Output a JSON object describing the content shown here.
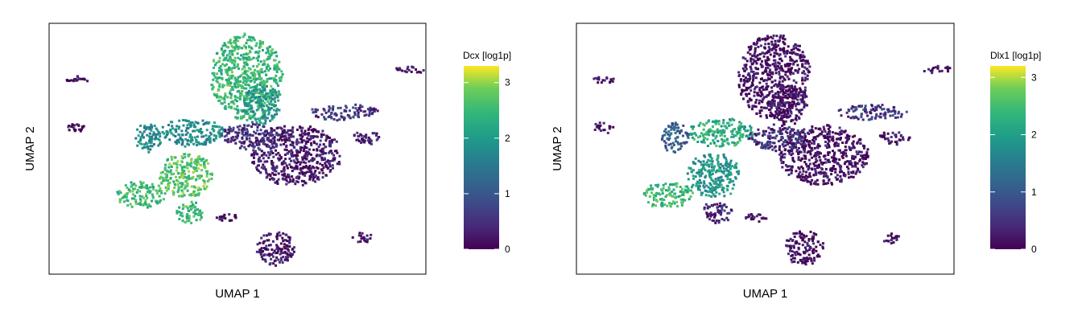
{
  "chart_data": [
    {
      "type": "scatter",
      "subtype": "umap-density-hexbin",
      "title": "",
      "xlabel": "UMAP 1",
      "ylabel": "UMAP 2",
      "grid": false,
      "legend_placement": "right",
      "colorbar": {
        "label": "Dcx [log1p]",
        "ticks": [
          0,
          1,
          2,
          3
        ],
        "vmin": 0,
        "vmax": 3.3,
        "colormap": "viridis"
      },
      "series": [
        {
          "region": "top-lobe",
          "x": 0.52,
          "y": 0.79,
          "value": 2.5
        },
        {
          "region": "top-lobe-base",
          "x": 0.56,
          "y": 0.68,
          "value": 1.9
        },
        {
          "region": "left-upper-branch",
          "x": 0.38,
          "y": 0.57,
          "value": 1.8
        },
        {
          "region": "left-main-cluster",
          "x": 0.36,
          "y": 0.4,
          "value": 2.7
        },
        {
          "region": "left-arm",
          "x": 0.26,
          "y": 0.55,
          "value": 1.8
        },
        {
          "region": "left-bottom",
          "x": 0.24,
          "y": 0.32,
          "value": 2.5
        },
        {
          "region": "lower-left-small",
          "x": 0.37,
          "y": 0.25,
          "value": 2.5
        },
        {
          "region": "center-right-mass",
          "x": 0.65,
          "y": 0.48,
          "value": 0.2
        },
        {
          "region": "center-left-mass",
          "x": 0.53,
          "y": 0.55,
          "value": 0.5
        },
        {
          "region": "right-branch-upper",
          "x": 0.78,
          "y": 0.65,
          "value": 0.6
        },
        {
          "region": "right-spur",
          "x": 0.84,
          "y": 0.55,
          "value": 0.4
        },
        {
          "region": "top-right-strand",
          "x": 0.96,
          "y": 0.82,
          "value": 0.1
        },
        {
          "region": "far-left-blob",
          "x": 0.07,
          "y": 0.59,
          "value": 0.1
        },
        {
          "region": "far-left-strand",
          "x": 0.07,
          "y": 0.78,
          "value": 0.1
        },
        {
          "region": "bottom-cluster",
          "x": 0.6,
          "y": 0.11,
          "value": 0.2
        },
        {
          "region": "bottom-right-blob",
          "x": 0.83,
          "y": 0.15,
          "value": 0.1
        },
        {
          "region": "bottom-mid-strand",
          "x": 0.47,
          "y": 0.23,
          "value": 0.1
        }
      ]
    },
    {
      "type": "scatter",
      "subtype": "umap-density-hexbin",
      "title": "",
      "xlabel": "UMAP 1",
      "ylabel": "UMAP 2",
      "grid": false,
      "legend_placement": "right",
      "colorbar": {
        "label": "Dlx1 [log1p]",
        "ticks": [
          0,
          1,
          2,
          3
        ],
        "vmin": 0,
        "vmax": 3.2,
        "colormap": "viridis"
      },
      "series": [
        {
          "region": "top-lobe",
          "x": 0.52,
          "y": 0.79,
          "value": 0.1
        },
        {
          "region": "top-lobe-base",
          "x": 0.56,
          "y": 0.68,
          "value": 0.2
        },
        {
          "region": "left-upper-branch",
          "x": 0.38,
          "y": 0.57,
          "value": 2.2
        },
        {
          "region": "left-main-cluster",
          "x": 0.36,
          "y": 0.4,
          "value": 1.9
        },
        {
          "region": "left-arm",
          "x": 0.26,
          "y": 0.55,
          "value": 1.0
        },
        {
          "region": "left-bottom",
          "x": 0.24,
          "y": 0.32,
          "value": 2.4
        },
        {
          "region": "lower-left-small",
          "x": 0.37,
          "y": 0.25,
          "value": 0.3
        },
        {
          "region": "center-right-mass",
          "x": 0.65,
          "y": 0.48,
          "value": 0.1
        },
        {
          "region": "center-left-mass",
          "x": 0.53,
          "y": 0.55,
          "value": 0.5
        },
        {
          "region": "right-branch-upper",
          "x": 0.78,
          "y": 0.65,
          "value": 0.6
        },
        {
          "region": "right-spur",
          "x": 0.84,
          "y": 0.55,
          "value": 0.2
        },
        {
          "region": "top-right-strand",
          "x": 0.96,
          "y": 0.82,
          "value": 0.1
        },
        {
          "region": "far-left-blob",
          "x": 0.07,
          "y": 0.59,
          "value": 0.1
        },
        {
          "region": "far-left-strand",
          "x": 0.07,
          "y": 0.78,
          "value": 0.1
        },
        {
          "region": "bottom-cluster",
          "x": 0.6,
          "y": 0.11,
          "value": 0.1
        },
        {
          "region": "bottom-right-blob",
          "x": 0.83,
          "y": 0.15,
          "value": 0.1
        },
        {
          "region": "bottom-mid-strand",
          "x": 0.47,
          "y": 0.23,
          "value": 0.1
        }
      ]
    }
  ]
}
